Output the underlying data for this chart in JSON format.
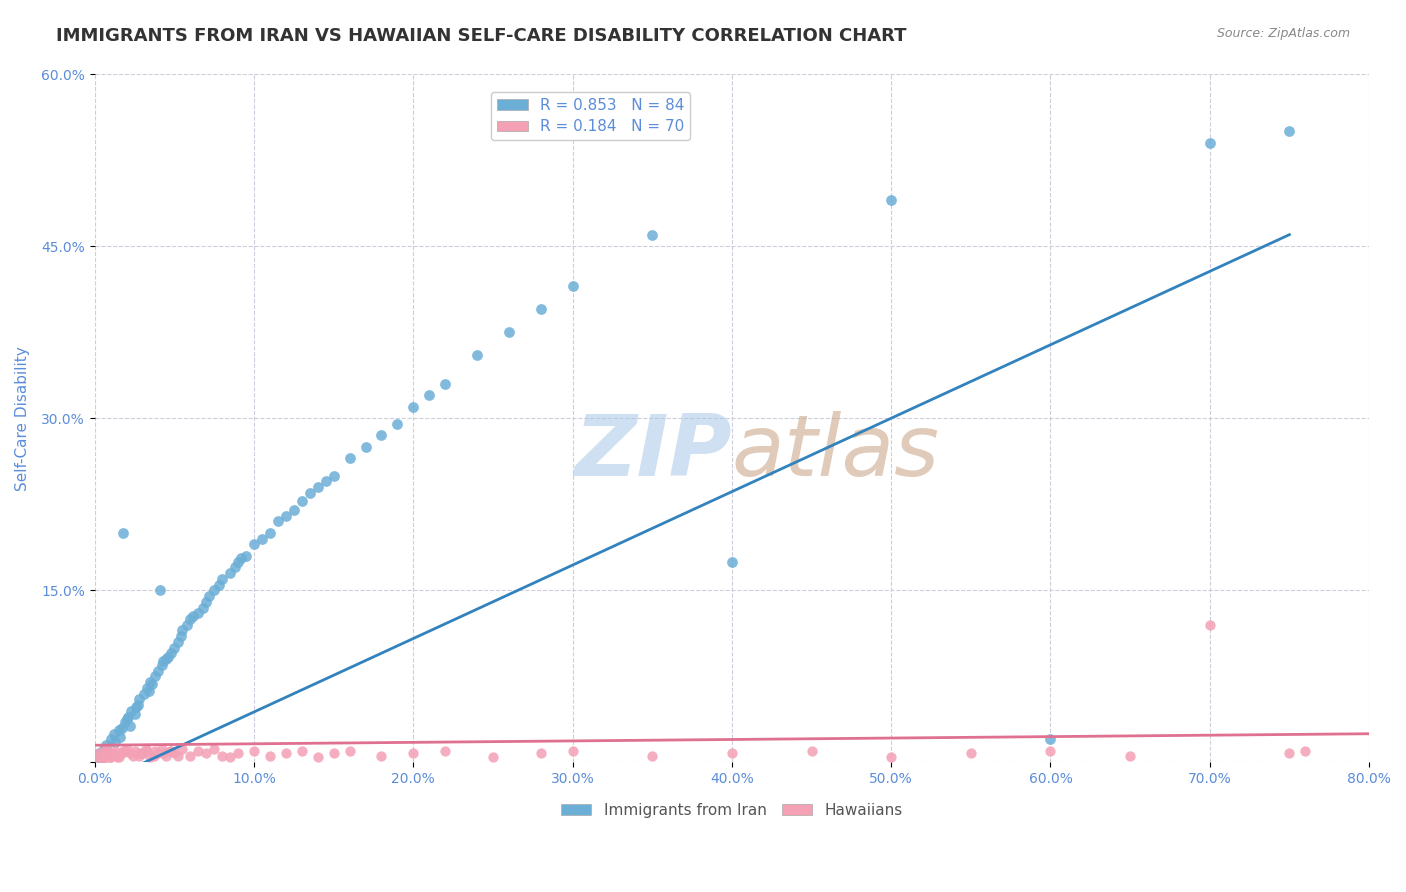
{
  "title": "IMMIGRANTS FROM IRAN VS HAWAIIAN SELF-CARE DISABILITY CORRELATION CHART",
  "source_text": "Source: ZipAtlas.com",
  "ylabel": "Self-Care Disability",
  "x_min": 0.0,
  "x_max": 0.8,
  "y_min": 0.0,
  "y_max": 0.6,
  "x_ticks": [
    0.0,
    0.1,
    0.2,
    0.3,
    0.4,
    0.5,
    0.6,
    0.7,
    0.8
  ],
  "x_tick_labels": [
    "0.0%",
    "10.0%",
    "20.0%",
    "30.0%",
    "40.0%",
    "50.0%",
    "60.0%",
    "70.0%",
    "80.0%"
  ],
  "y_ticks": [
    0.0,
    0.15,
    0.3,
    0.45,
    0.6
  ],
  "y_tick_labels": [
    "",
    "15.0%",
    "30.0%",
    "45.0%",
    "60.0%"
  ],
  "legend_label1": "Immigrants from Iran",
  "legend_label2": "Hawaiians",
  "r1": "0.853",
  "n1": "84",
  "r2": "0.184",
  "n2": "70",
  "color_blue": "#6baed6",
  "color_pink": "#f4a0b5",
  "line_blue": "#3182bd",
  "line_pink": "#e07090",
  "bg_color": "#ffffff",
  "grid_color": "#c8c8d8",
  "title_color": "#333333",
  "axis_color": "#5b8dd9",
  "watermark_color_zip": "#a8c8e8",
  "watermark_color_atlas": "#c8a080",
  "blue_scatter": [
    [
      0.002,
      0.005
    ],
    [
      0.003,
      0.008
    ],
    [
      0.004,
      0.003
    ],
    [
      0.005,
      0.01
    ],
    [
      0.006,
      0.012
    ],
    [
      0.007,
      0.015
    ],
    [
      0.008,
      0.01
    ],
    [
      0.01,
      0.02
    ],
    [
      0.012,
      0.025
    ],
    [
      0.013,
      0.018
    ],
    [
      0.015,
      0.028
    ],
    [
      0.016,
      0.022
    ],
    [
      0.017,
      0.03
    ],
    [
      0.018,
      0.2
    ],
    [
      0.019,
      0.035
    ],
    [
      0.02,
      0.038
    ],
    [
      0.021,
      0.04
    ],
    [
      0.022,
      0.032
    ],
    [
      0.023,
      0.045
    ],
    [
      0.025,
      0.042
    ],
    [
      0.026,
      0.048
    ],
    [
      0.027,
      0.05
    ],
    [
      0.028,
      0.055
    ],
    [
      0.03,
      0.008
    ],
    [
      0.031,
      0.06
    ],
    [
      0.033,
      0.065
    ],
    [
      0.034,
      0.062
    ],
    [
      0.035,
      0.07
    ],
    [
      0.036,
      0.068
    ],
    [
      0.038,
      0.075
    ],
    [
      0.04,
      0.08
    ],
    [
      0.041,
      0.15
    ],
    [
      0.042,
      0.085
    ],
    [
      0.043,
      0.088
    ],
    [
      0.045,
      0.09
    ],
    [
      0.046,
      0.092
    ],
    [
      0.048,
      0.095
    ],
    [
      0.05,
      0.1
    ],
    [
      0.052,
      0.105
    ],
    [
      0.054,
      0.11
    ],
    [
      0.055,
      0.115
    ],
    [
      0.058,
      0.12
    ],
    [
      0.06,
      0.125
    ],
    [
      0.062,
      0.128
    ],
    [
      0.065,
      0.13
    ],
    [
      0.068,
      0.135
    ],
    [
      0.07,
      0.14
    ],
    [
      0.072,
      0.145
    ],
    [
      0.075,
      0.15
    ],
    [
      0.078,
      0.155
    ],
    [
      0.08,
      0.16
    ],
    [
      0.085,
      0.165
    ],
    [
      0.088,
      0.17
    ],
    [
      0.09,
      0.175
    ],
    [
      0.092,
      0.178
    ],
    [
      0.095,
      0.18
    ],
    [
      0.1,
      0.19
    ],
    [
      0.105,
      0.195
    ],
    [
      0.11,
      0.2
    ],
    [
      0.115,
      0.21
    ],
    [
      0.12,
      0.215
    ],
    [
      0.125,
      0.22
    ],
    [
      0.13,
      0.228
    ],
    [
      0.135,
      0.235
    ],
    [
      0.14,
      0.24
    ],
    [
      0.145,
      0.245
    ],
    [
      0.15,
      0.25
    ],
    [
      0.16,
      0.265
    ],
    [
      0.17,
      0.275
    ],
    [
      0.18,
      0.285
    ],
    [
      0.19,
      0.295
    ],
    [
      0.2,
      0.31
    ],
    [
      0.21,
      0.32
    ],
    [
      0.22,
      0.33
    ],
    [
      0.24,
      0.355
    ],
    [
      0.26,
      0.375
    ],
    [
      0.28,
      0.395
    ],
    [
      0.3,
      0.415
    ],
    [
      0.35,
      0.46
    ],
    [
      0.4,
      0.175
    ],
    [
      0.5,
      0.49
    ],
    [
      0.6,
      0.02
    ],
    [
      0.7,
      0.54
    ],
    [
      0.75,
      0.55
    ]
  ],
  "pink_scatter": [
    [
      0.002,
      0.005
    ],
    [
      0.003,
      0.008
    ],
    [
      0.004,
      0.004
    ],
    [
      0.005,
      0.006
    ],
    [
      0.006,
      0.01
    ],
    [
      0.007,
      0.008
    ],
    [
      0.008,
      0.012
    ],
    [
      0.01,
      0.006
    ],
    [
      0.012,
      0.008
    ],
    [
      0.013,
      0.01
    ],
    [
      0.015,
      0.005
    ],
    [
      0.016,
      0.008
    ],
    [
      0.018,
      0.01
    ],
    [
      0.02,
      0.012
    ],
    [
      0.022,
      0.008
    ],
    [
      0.025,
      0.01
    ],
    [
      0.028,
      0.006
    ],
    [
      0.03,
      0.008
    ],
    [
      0.032,
      0.012
    ],
    [
      0.035,
      0.005
    ],
    [
      0.038,
      0.01
    ],
    [
      0.04,
      0.008
    ],
    [
      0.042,
      0.012
    ],
    [
      0.045,
      0.006
    ],
    [
      0.048,
      0.01
    ],
    [
      0.05,
      0.008
    ],
    [
      0.055,
      0.012
    ],
    [
      0.06,
      0.006
    ],
    [
      0.065,
      0.01
    ],
    [
      0.07,
      0.008
    ],
    [
      0.075,
      0.012
    ],
    [
      0.08,
      0.006
    ],
    [
      0.085,
      0.005
    ],
    [
      0.09,
      0.008
    ],
    [
      0.1,
      0.01
    ],
    [
      0.11,
      0.006
    ],
    [
      0.12,
      0.008
    ],
    [
      0.13,
      0.01
    ],
    [
      0.14,
      0.005
    ],
    [
      0.15,
      0.008
    ],
    [
      0.16,
      0.01
    ],
    [
      0.18,
      0.006
    ],
    [
      0.2,
      0.008
    ],
    [
      0.22,
      0.01
    ],
    [
      0.25,
      0.005
    ],
    [
      0.28,
      0.008
    ],
    [
      0.3,
      0.01
    ],
    [
      0.35,
      0.006
    ],
    [
      0.4,
      0.008
    ],
    [
      0.45,
      0.01
    ],
    [
      0.5,
      0.005
    ],
    [
      0.55,
      0.008
    ],
    [
      0.6,
      0.01
    ],
    [
      0.65,
      0.006
    ],
    [
      0.7,
      0.12
    ],
    [
      0.75,
      0.008
    ],
    [
      0.76,
      0.01
    ],
    [
      0.005,
      0.005
    ],
    [
      0.009,
      0.004
    ],
    [
      0.011,
      0.006
    ],
    [
      0.014,
      0.005
    ],
    [
      0.017,
      0.008
    ],
    [
      0.019,
      0.01
    ],
    [
      0.024,
      0.006
    ],
    [
      0.027,
      0.008
    ],
    [
      0.033,
      0.01
    ],
    [
      0.037,
      0.006
    ],
    [
      0.043,
      0.008
    ],
    [
      0.047,
      0.01
    ],
    [
      0.052,
      0.006
    ]
  ],
  "blue_line": [
    [
      0.0,
      -0.02
    ],
    [
      0.75,
      0.46
    ]
  ],
  "pink_line": [
    [
      0.0,
      0.015
    ],
    [
      0.8,
      0.025
    ]
  ]
}
